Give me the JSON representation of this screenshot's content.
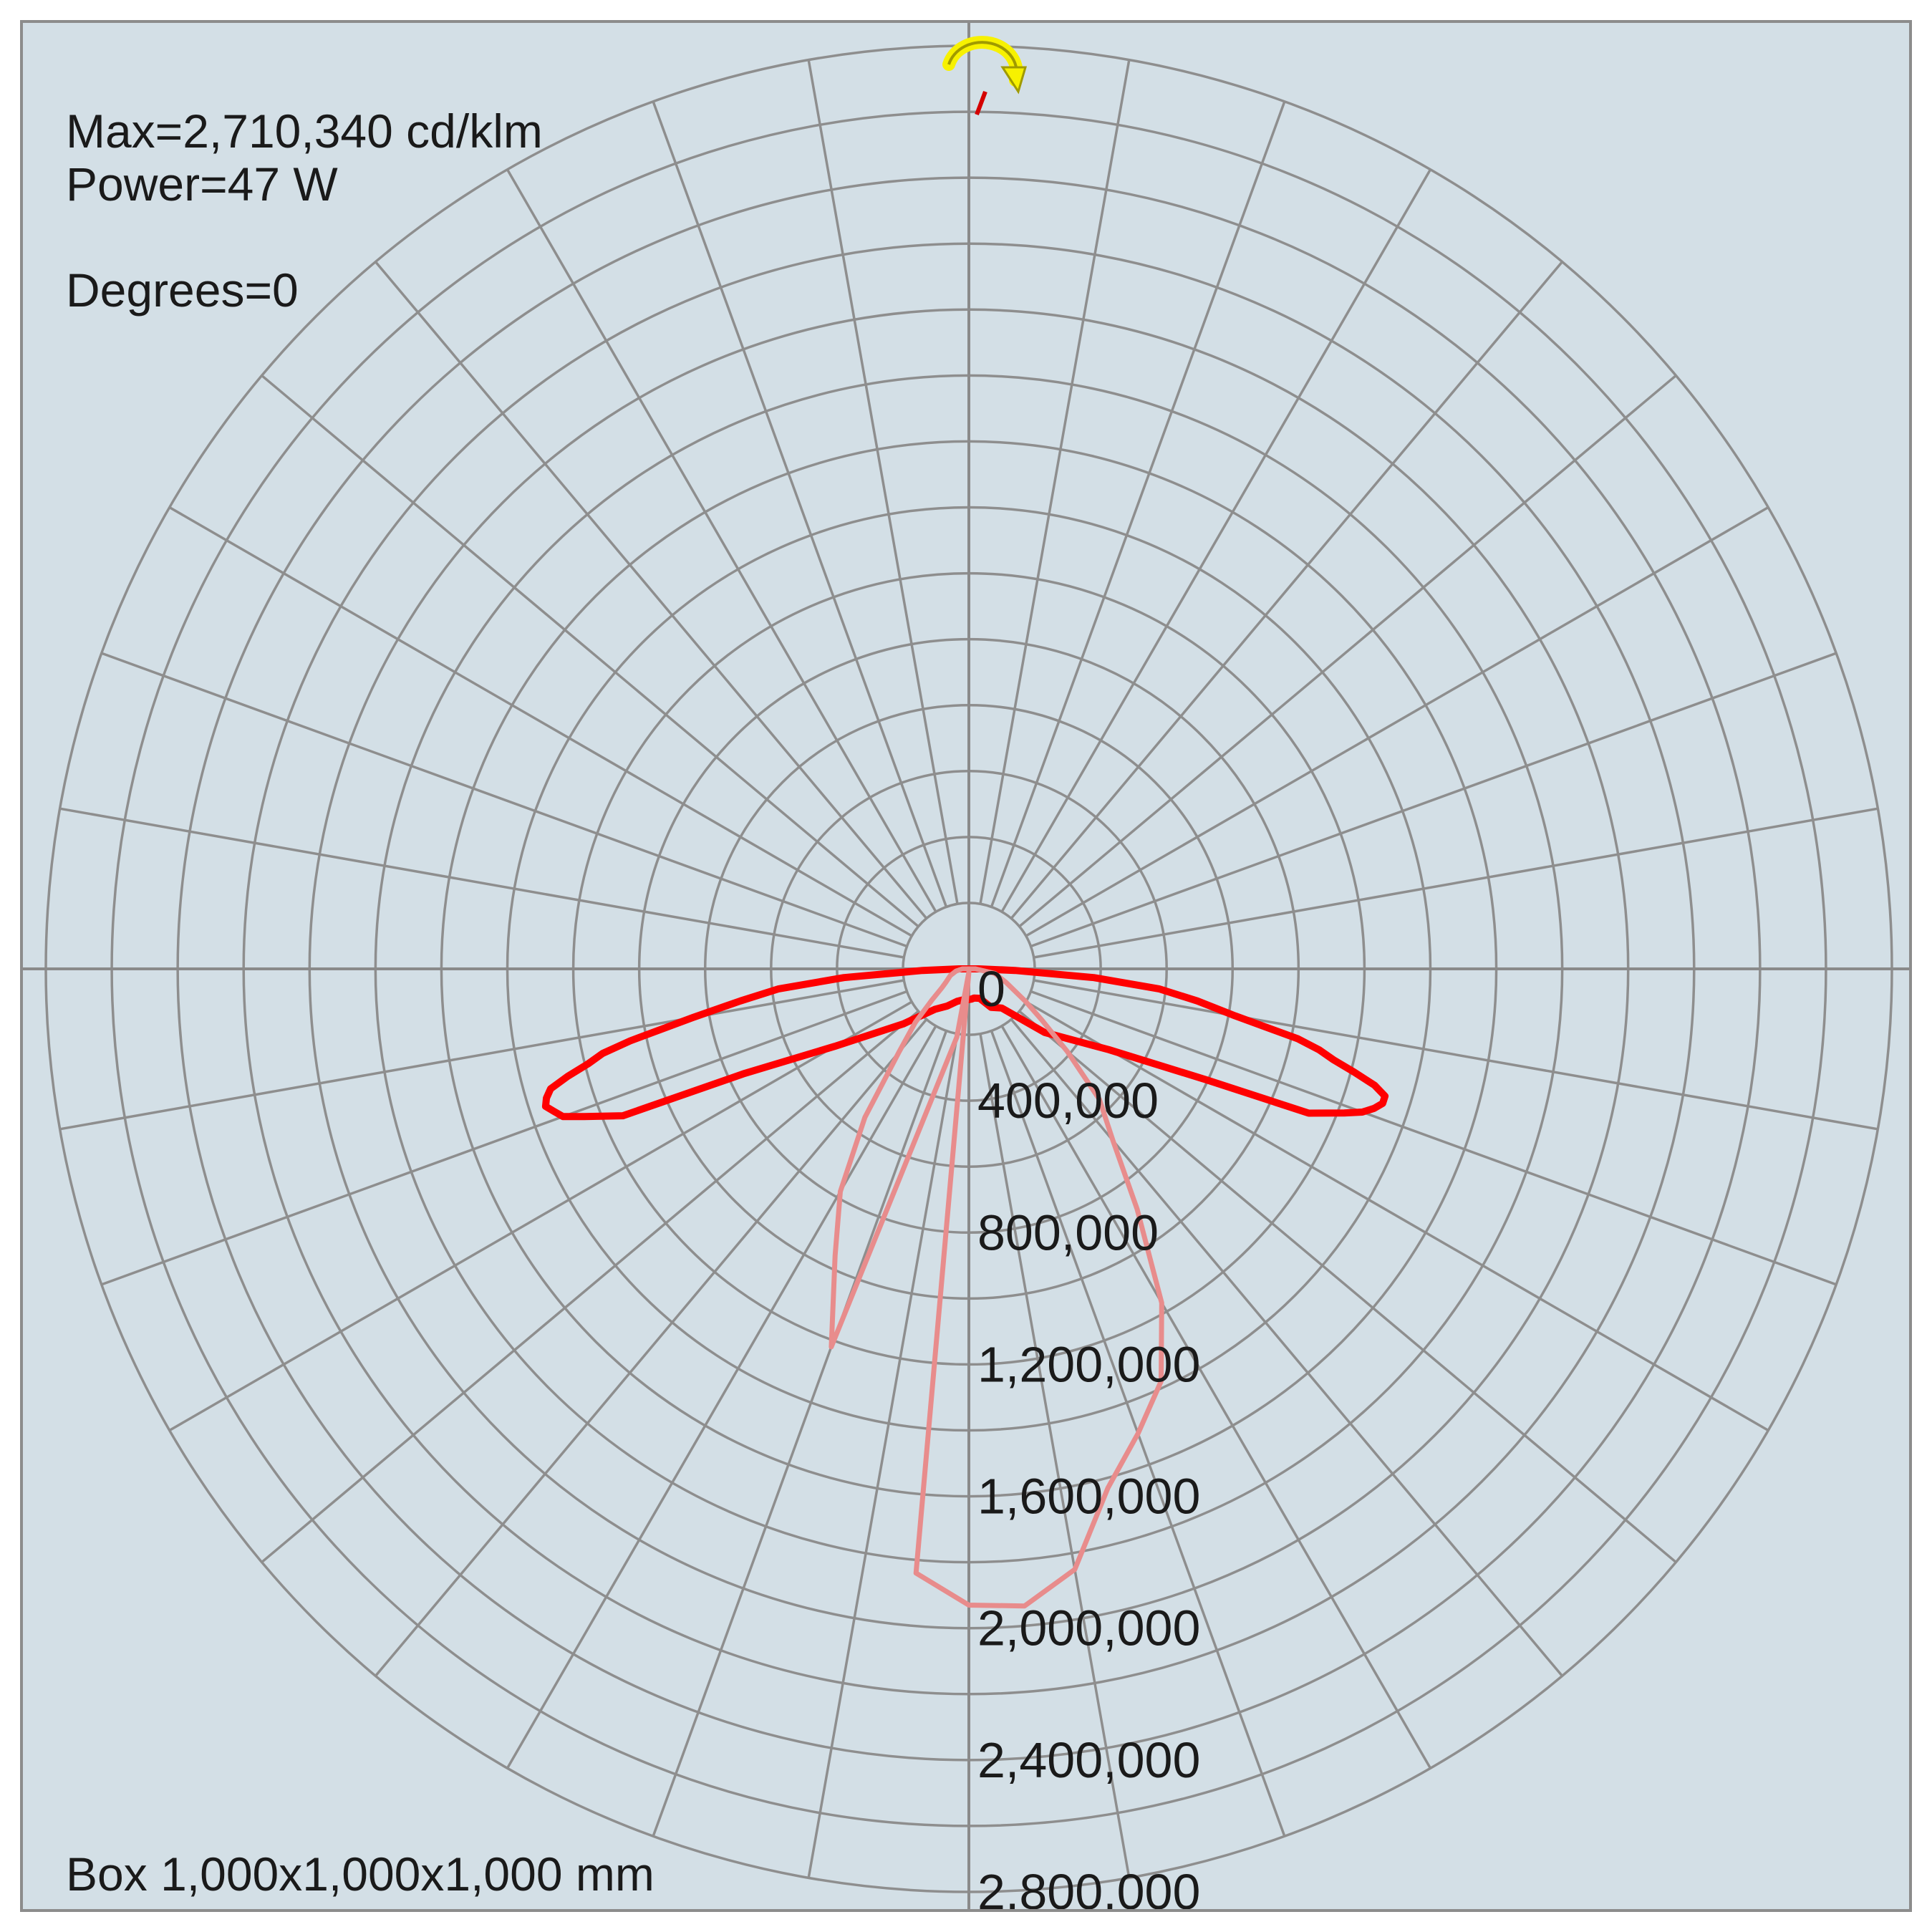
{
  "info": {
    "max": "Max=2,710,340 cd/klm",
    "power": "Power=47 W",
    "degrees": "Degrees=0",
    "box": "Box 1,000x1,000x1,000 mm"
  },
  "chart_data": {
    "type": "polar-line",
    "units": "cd/klm",
    "r_tick_labels": [
      "0",
      "400,000",
      "800,000",
      "1,200,000",
      "1,600,000",
      "2,000,000",
      "2,400,000",
      "2,800,000"
    ],
    "r_max": 2800000,
    "angle_zero": "nadir (down)",
    "spoke_step_deg": 10,
    "grid": true,
    "series": [
      {
        "color": "#ff0000",
        "points": [
          [
            -5,
            95000
          ],
          [
            -10,
            95000
          ],
          [
            -20,
            105000
          ],
          [
            -30,
            130000
          ],
          [
            -40,
            160000
          ],
          [
            -50,
            260000
          ],
          [
            -60,
            470000
          ],
          [
            -65,
            750000
          ],
          [
            -67,
            1140000
          ],
          [
            -69,
            1250000
          ],
          [
            -70,
            1310000
          ],
          [
            -71,
            1330000
          ],
          [
            -72,
            1350000
          ],
          [
            -73,
            1340000
          ],
          [
            -74,
            1320000
          ],
          [
            -75,
            1260000
          ],
          [
            -76,
            1190000
          ],
          [
            -77,
            1140000
          ],
          [
            -78,
            1050000
          ],
          [
            -80,
            850000
          ],
          [
            -82,
            700000
          ],
          [
            -84,
            580000
          ],
          [
            -86,
            380000
          ],
          [
            -88,
            140000
          ],
          [
            -90,
            30000
          ],
          [
            0,
            0
          ],
          [
            90,
            30000
          ],
          [
            88,
            140000
          ],
          [
            86,
            380000
          ],
          [
            84,
            580000
          ],
          [
            82,
            700000
          ],
          [
            80,
            820000
          ],
          [
            78,
            1020000
          ],
          [
            77,
            1090000
          ],
          [
            76,
            1140000
          ],
          [
            75,
            1210000
          ],
          [
            74,
            1280000
          ],
          [
            73,
            1320000
          ],
          [
            72,
            1320000
          ],
          [
            71,
            1300000
          ],
          [
            70,
            1270000
          ],
          [
            69,
            1220000
          ],
          [
            67,
            1120000
          ],
          [
            65,
            800000
          ],
          [
            60,
            490000
          ],
          [
            50,
            300000
          ],
          [
            40,
            155000
          ],
          [
            30,
            135000
          ],
          [
            20,
            95000
          ],
          [
            10,
            90000
          ],
          [
            5,
            92000
          ]
        ]
      },
      {
        "color": "#e88c8c",
        "points": [
          [
            0,
            10000
          ],
          [
            -10,
            210000
          ],
          [
            -20,
            1220000
          ],
          [
            -25,
            960000
          ],
          [
            -30,
            780000
          ],
          [
            -35,
            550000
          ],
          [
            -40,
            330000
          ],
          [
            -45,
            230000
          ],
          [
            -50,
            145000
          ],
          [
            -55,
            100000
          ],
          [
            -60,
            80000
          ],
          [
            -70,
            60000
          ],
          [
            -80,
            40000
          ],
          [
            -90,
            20000
          ],
          [
            90,
            20000
          ],
          [
            80,
            80000
          ],
          [
            70,
            120000
          ],
          [
            60,
            200000
          ],
          [
            55,
            270000
          ],
          [
            50,
            390000
          ],
          [
            45,
            560000
          ],
          [
            40,
            680000
          ],
          [
            35,
            890000
          ],
          [
            30,
            1170000
          ],
          [
            25,
            1380000
          ],
          [
            20,
            1500000
          ],
          [
            15,
            1630000
          ],
          [
            10,
            1850000
          ],
          [
            5,
            1940000
          ],
          [
            0,
            1930000
          ],
          [
            -5,
            1840000
          ]
        ]
      }
    ]
  },
  "icon": "rotate-arrow-icon"
}
